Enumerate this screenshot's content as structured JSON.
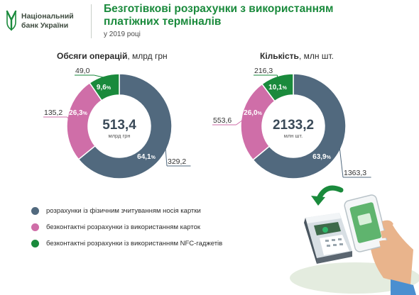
{
  "header": {
    "logo_line1": "Національний",
    "logo_line2": "банк України",
    "title_line1": "Безготівкові розрахунки з використанням",
    "title_line2": "платіжних терміналів",
    "subtitle": "у 2019 році"
  },
  "colors": {
    "physical": "#51697e",
    "contactless_card": "#cf6ea8",
    "nfc": "#1a8a3c",
    "title_green": "#1a8a3c"
  },
  "chart_data": [
    {
      "type": "pie",
      "donut": true,
      "title_bold": "Обсяги операцій",
      "title_unit": ", млрд грн",
      "center_value": "513,4",
      "center_unit": "млрд грн",
      "series": [
        {
          "key": "physical",
          "value": 329.2,
          "value_label": "329,2",
          "pct": "64,1",
          "color": "#51697e"
        },
        {
          "key": "contactless_card",
          "value": 135.2,
          "value_label": "135,2",
          "pct": "26,3",
          "color": "#cf6ea8"
        },
        {
          "key": "nfc",
          "value": 49.0,
          "value_label": "49,0",
          "pct": "9,6",
          "color": "#1a8a3c"
        }
      ]
    },
    {
      "type": "pie",
      "donut": true,
      "title_bold": "Кількість",
      "title_unit": ", млн шт.",
      "center_value": "2133,2",
      "center_unit": "млн шт.",
      "series": [
        {
          "key": "physical",
          "value": 1363.3,
          "value_label": "1363,3",
          "pct": "63,9",
          "color": "#51697e"
        },
        {
          "key": "contactless_card",
          "value": 553.6,
          "value_label": "553,6",
          "pct": "26,0",
          "color": "#cf6ea8"
        },
        {
          "key": "nfc",
          "value": 216.3,
          "value_label": "216,3",
          "pct": "10,1",
          "color": "#1a8a3c"
        }
      ]
    }
  ],
  "legend": [
    {
      "label": "розрахунки із фізичним зчитуванням носія картки",
      "color": "#51697e"
    },
    {
      "label": "безконтактні розрахунки із використанням карток",
      "color": "#cf6ea8"
    },
    {
      "label": "безконтактні розрахунки із використанням NFC-гаджетів",
      "color": "#1a8a3c"
    }
  ],
  "illustration": {
    "name": "payment-terminal-and-phone-illustration"
  }
}
